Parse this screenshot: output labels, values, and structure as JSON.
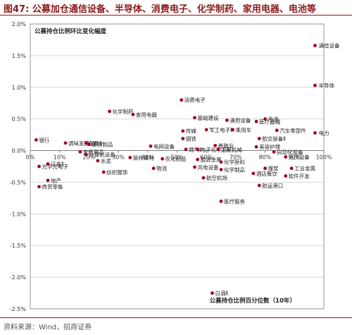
{
  "header": {
    "figure_no": "图47:",
    "title": "公募加仓通信设备、半导体、消费电子、化学制药、家用电器、电池等"
  },
  "source": "资料来源：Wind，招商证券",
  "colors": {
    "brand": "#8B1A1A",
    "point": "#A50021",
    "grid": "#d8d8d8",
    "axis": "#7f7f7f"
  },
  "chart_data": {
    "type": "scatter",
    "title": "",
    "ylabel_inline": "公募持仓比例环比变化幅度",
    "xlabel_inline": "公募持仓比例百分位数（10年）",
    "xlim": [
      0,
      100
    ],
    "ylim": [
      -2.5,
      2.0
    ],
    "x_ticks": [
      "0%",
      "10%",
      "20%",
      "30%",
      "40%",
      "50%",
      "60%",
      "70%",
      "80%",
      "90%",
      "100%"
    ],
    "y_ticks": [
      "2.0%",
      "1.5%",
      "1.0%",
      "0.5%",
      "0.0%",
      "-0.5%",
      "-1.0%",
      "-1.5%",
      "-2.0%",
      "-2.5%"
    ],
    "grid": "horizontal",
    "points": [
      {
        "label": "通信设备",
        "x": 97,
        "y": 1.66
      },
      {
        "label": "半导体",
        "x": 97,
        "y": 1.03
      },
      {
        "label": "电力",
        "x": 97,
        "y": 0.28
      },
      {
        "label": "消费电子",
        "x": 51.5,
        "y": 0.8
      },
      {
        "label": "化学制药",
        "x": 27,
        "y": 0.62
      },
      {
        "label": "家用电器",
        "x": 35,
        "y": 0.57
      },
      {
        "label": "基础建设",
        "x": 56,
        "y": 0.52
      },
      {
        "label": "电池",
        "x": 80,
        "y": 0.5
      },
      {
        "label": "通用设备",
        "x": 67,
        "y": 0.48
      },
      {
        "label": "医疗器械",
        "x": 77,
        "y": 0.46
      },
      {
        "label": "军工电子Ⅱ",
        "x": 60,
        "y": 0.33
      },
      {
        "label": "传媒",
        "x": 52,
        "y": 0.31
      },
      {
        "label": "乘用车",
        "x": 69,
        "y": 0.33
      },
      {
        "label": "汽车零部件",
        "x": 84,
        "y": 0.32
      },
      {
        "label": "钢铁",
        "x": 52,
        "y": 0.19
      },
      {
        "label": "航空装备Ⅱ",
        "x": 78,
        "y": 0.19
      },
      {
        "label": "银行",
        "x": 2,
        "y": 0.17
      },
      {
        "label": "调味发酵品Ⅱ",
        "x": 12,
        "y": 0.12
      },
      {
        "label": "保险Ⅱ",
        "x": 19,
        "y": 0.12
      },
      {
        "label": "生物制品",
        "x": 20,
        "y": 0.1
      },
      {
        "label": "电网设备",
        "x": 41,
        "y": 0.07
      },
      {
        "label": "养殖业",
        "x": 63,
        "y": 0.08
      },
      {
        "label": "美容护理",
        "x": 77,
        "y": 0.06
      },
      {
        "label": "自动化设备",
        "x": 83,
        "y": -0.02
      },
      {
        "label": "燃气Ⅱ",
        "x": 53,
        "y": 0.02
      },
      {
        "label": "电子化学品Ⅱ",
        "x": 57,
        "y": 0.02
      },
      {
        "label": "工程机械",
        "x": 64,
        "y": 0.02
      },
      {
        "label": "家居用品",
        "x": 17,
        "y": -0.02
      },
      {
        "label": "计算机设备",
        "x": 19,
        "y": -0.06
      },
      {
        "label": "装修建材",
        "x": 34,
        "y": -0.11
      },
      {
        "label": "农化制品",
        "x": 45,
        "y": -0.13
      },
      {
        "label": "能源金属",
        "x": 57,
        "y": -0.14
      },
      {
        "label": "化学原料",
        "x": 65,
        "y": -0.18
      },
      {
        "label": "光伏设备",
        "x": 87,
        "y": -0.1
      },
      {
        "label": "证券Ⅱ",
        "x": 6,
        "y": -0.21
      },
      {
        "label": "光学光电子",
        "x": 3,
        "y": -0.25
      },
      {
        "label": "水泥",
        "x": 23,
        "y": -0.16
      },
      {
        "label": "纺织服饰",
        "x": 25,
        "y": -0.34
      },
      {
        "label": "物流",
        "x": 42,
        "y": -0.28
      },
      {
        "label": "风电设备",
        "x": 56,
        "y": -0.26
      },
      {
        "label": "化学制品",
        "x": 65,
        "y": -0.3
      },
      {
        "label": "酒店餐饮",
        "x": 76,
        "y": -0.36
      },
      {
        "label": "煤炭",
        "x": 80,
        "y": -0.28
      },
      {
        "label": "工业金属",
        "x": 89,
        "y": -0.28
      },
      {
        "label": "软件开发",
        "x": 87,
        "y": -0.4
      },
      {
        "label": "航空机场",
        "x": 59,
        "y": -0.43
      },
      {
        "label": "航运港口",
        "x": 78,
        "y": -0.55
      },
      {
        "label": "地产",
        "x": 6,
        "y": -0.47
      },
      {
        "label": "商贸零售",
        "x": 3,
        "y": -0.57
      },
      {
        "label": "医疗服务",
        "x": 65,
        "y": -0.8
      },
      {
        "label": "白酒Ⅱ",
        "x": 62,
        "y": -2.25
      }
    ]
  }
}
